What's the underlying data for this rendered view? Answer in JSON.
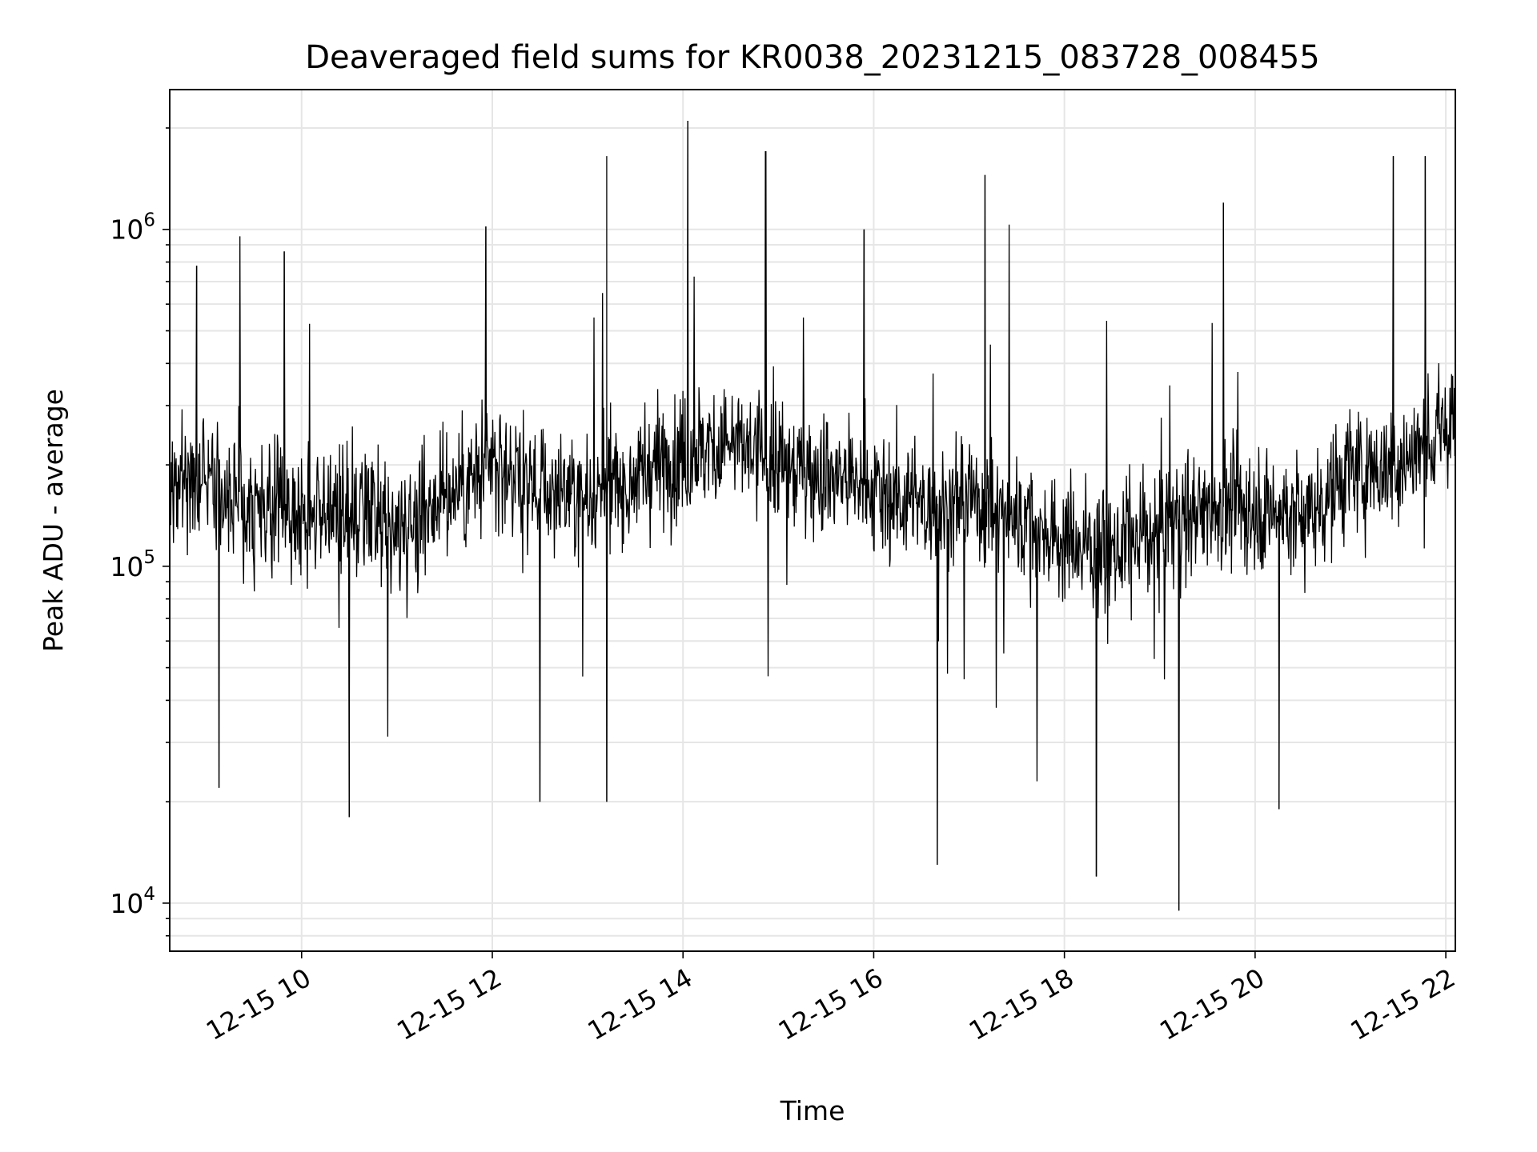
{
  "chart_data": {
    "type": "line",
    "title": "Deaveraged field sums for KR0038_20231215_083728_008455",
    "xlabel": "Time",
    "ylabel": "Peak ADU - average",
    "yscale": "log",
    "xlim": [
      "2023-12-15 08:37",
      "2023-12-15 22:06"
    ],
    "ylim": [
      7200,
      2600000
    ],
    "grid": true,
    "x_ticks": [
      {
        "t": "2023-12-15 10:00",
        "label": "12-15 10"
      },
      {
        "t": "2023-12-15 12:00",
        "label": "12-15 12"
      },
      {
        "t": "2023-12-15 14:00",
        "label": "12-15 14"
      },
      {
        "t": "2023-12-15 16:00",
        "label": "12-15 16"
      },
      {
        "t": "2023-12-15 18:00",
        "label": "12-15 18"
      },
      {
        "t": "2023-12-15 20:00",
        "label": "12-15 20"
      },
      {
        "t": "2023-12-15 22:00",
        "label": "12-15 22"
      }
    ],
    "y_ticks": [
      {
        "value": 10000,
        "base": "10",
        "exp": "4"
      },
      {
        "value": 100000,
        "base": "10",
        "exp": "5"
      },
      {
        "value": 1000000,
        "base": "10",
        "exp": "6"
      }
    ],
    "series": [
      {
        "color": "#000000",
        "x": [
          "2023-12-15 08:37",
          "2023-12-15 09:00",
          "2023-12-15 09:30",
          "2023-12-15 10:00",
          "2023-12-15 10:30",
          "2023-12-15 11:00",
          "2023-12-15 11:30",
          "2023-12-15 12:00",
          "2023-12-15 12:30",
          "2023-12-15 13:00",
          "2023-12-15 13:30",
          "2023-12-15 14:00",
          "2023-12-15 14:30",
          "2023-12-15 15:00",
          "2023-12-15 15:30",
          "2023-12-15 16:00",
          "2023-12-15 16:30",
          "2023-12-15 17:00",
          "2023-12-15 17:30",
          "2023-12-15 18:00",
          "2023-12-15 18:30",
          "2023-12-15 19:00",
          "2023-12-15 19:30",
          "2023-12-15 20:00",
          "2023-12-15 20:30",
          "2023-12-15 21:00",
          "2023-12-15 21:30",
          "2023-12-15 22:00",
          "2023-12-15 22:06"
        ],
        "y_center": [
          170000,
          190000,
          140000,
          150000,
          140000,
          130000,
          160000,
          200000,
          170000,
          160000,
          180000,
          220000,
          230000,
          200000,
          190000,
          170000,
          150000,
          160000,
          140000,
          120000,
          110000,
          130000,
          150000,
          150000,
          140000,
          190000,
          200000,
          250000,
          280000
        ],
        "y_spikes": [
          {
            "t": "2023-12-15 08:54",
            "y": 780000
          },
          {
            "t": "2023-12-15 09:08",
            "y": 22000
          },
          {
            "t": "2023-12-15 09:49",
            "y": 860000
          },
          {
            "t": "2023-12-15 10:30",
            "y": 18000
          },
          {
            "t": "2023-12-15 11:56",
            "y": 1020000
          },
          {
            "t": "2023-12-15 12:30",
            "y": 20000
          },
          {
            "t": "2023-12-15 13:12",
            "y": 1650000
          },
          {
            "t": "2023-12-15 13:12",
            "y": 20000
          },
          {
            "t": "2023-12-15 14:03",
            "y": 2100000
          },
          {
            "t": "2023-12-15 14:52",
            "y": 1700000
          },
          {
            "t": "2023-12-15 15:54",
            "y": 1000000
          },
          {
            "t": "2023-12-15 16:40",
            "y": 13000
          },
          {
            "t": "2023-12-15 17:10",
            "y": 1450000
          },
          {
            "t": "2023-12-15 18:20",
            "y": 12000
          },
          {
            "t": "2023-12-15 19:12",
            "y": 9500
          },
          {
            "t": "2023-12-15 19:40",
            "y": 1200000
          },
          {
            "t": "2023-12-15 20:15",
            "y": 19000
          },
          {
            "t": "2023-12-15 21:27",
            "y": 1650000
          },
          {
            "t": "2023-12-15 21:47",
            "y": 1650000
          }
        ]
      }
    ]
  }
}
